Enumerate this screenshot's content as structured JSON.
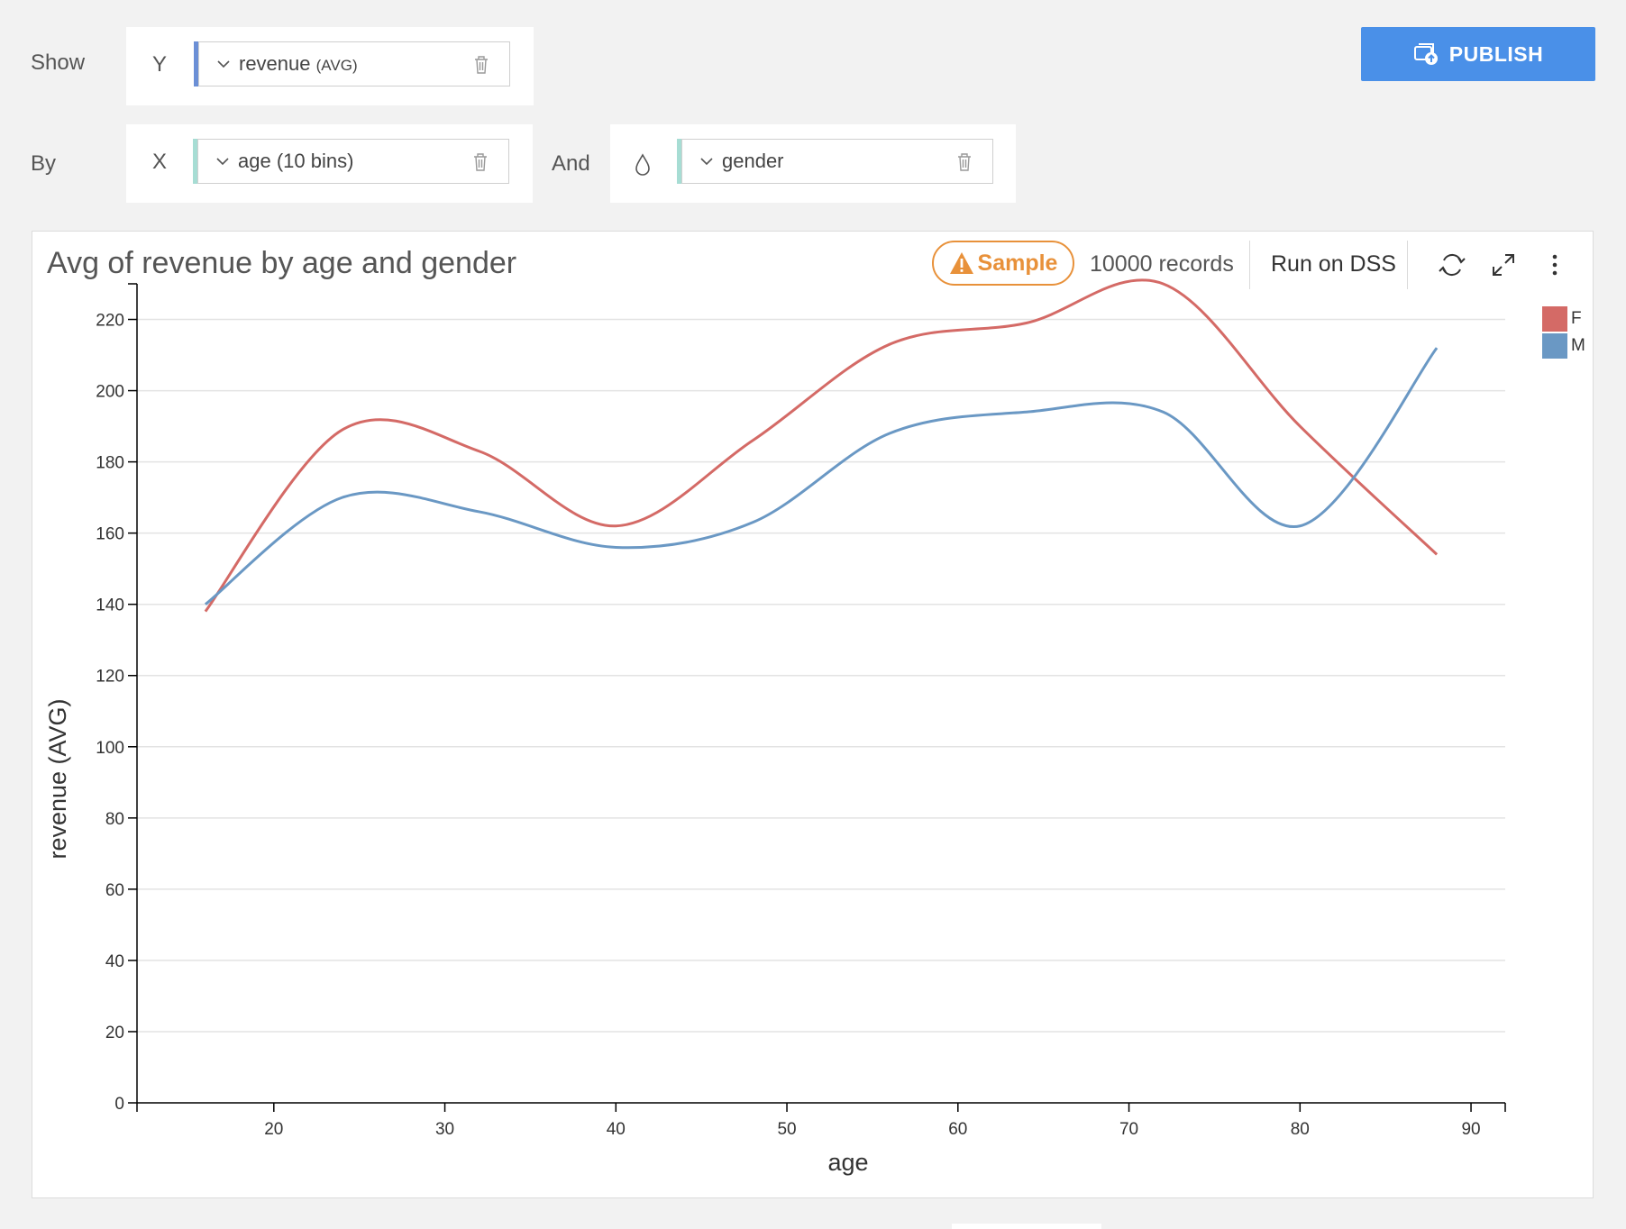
{
  "shelf": {
    "show_label": "Show",
    "by_label": "By",
    "and_label": "And",
    "y_letter": "Y",
    "x_letter": "X",
    "y_field": {
      "name": "revenue",
      "agg": "(AVG)",
      "accent": "#6b8fd6"
    },
    "x_field": {
      "name": "age (10 bins)",
      "accent": "#a7ddd4"
    },
    "color_field": {
      "name": "gender",
      "accent": "#a7ddd4",
      "icon": "droplet-icon"
    }
  },
  "toolbar": {
    "publish_label": "PUBLISH",
    "publish_color": "#4a90e8"
  },
  "panel": {
    "title": "Avg of revenue by age and gender",
    "sample_label": "Sample",
    "sample_color": "#e8913a",
    "records": "10000 records",
    "run_label": "Run on DSS"
  },
  "chart_data": {
    "type": "line",
    "title": "Avg of revenue by age and gender",
    "xlabel": "age",
    "ylabel": "revenue (AVG)",
    "xlim": [
      12,
      92
    ],
    "ylim": [
      0,
      230
    ],
    "xticks": [
      20,
      30,
      40,
      50,
      60,
      70,
      80,
      90
    ],
    "yticks": [
      0,
      20,
      40,
      60,
      80,
      100,
      120,
      140,
      160,
      180,
      200,
      220
    ],
    "grid": true,
    "legend": "right",
    "smooth": true,
    "series": [
      {
        "name": "F",
        "color": "#d46a66",
        "x": [
          16,
          24,
          32,
          40,
          48,
          56,
          64,
          72,
          80,
          88
        ],
        "y": [
          138,
          189,
          183,
          162,
          186,
          213,
          219,
          230,
          190,
          154
        ]
      },
      {
        "name": "M",
        "color": "#6a98c4",
        "x": [
          16,
          24,
          32,
          40,
          48,
          56,
          64,
          72,
          80,
          88
        ],
        "y": [
          140,
          170,
          166,
          156,
          163,
          188,
          194,
          194,
          162,
          212
        ]
      }
    ]
  }
}
